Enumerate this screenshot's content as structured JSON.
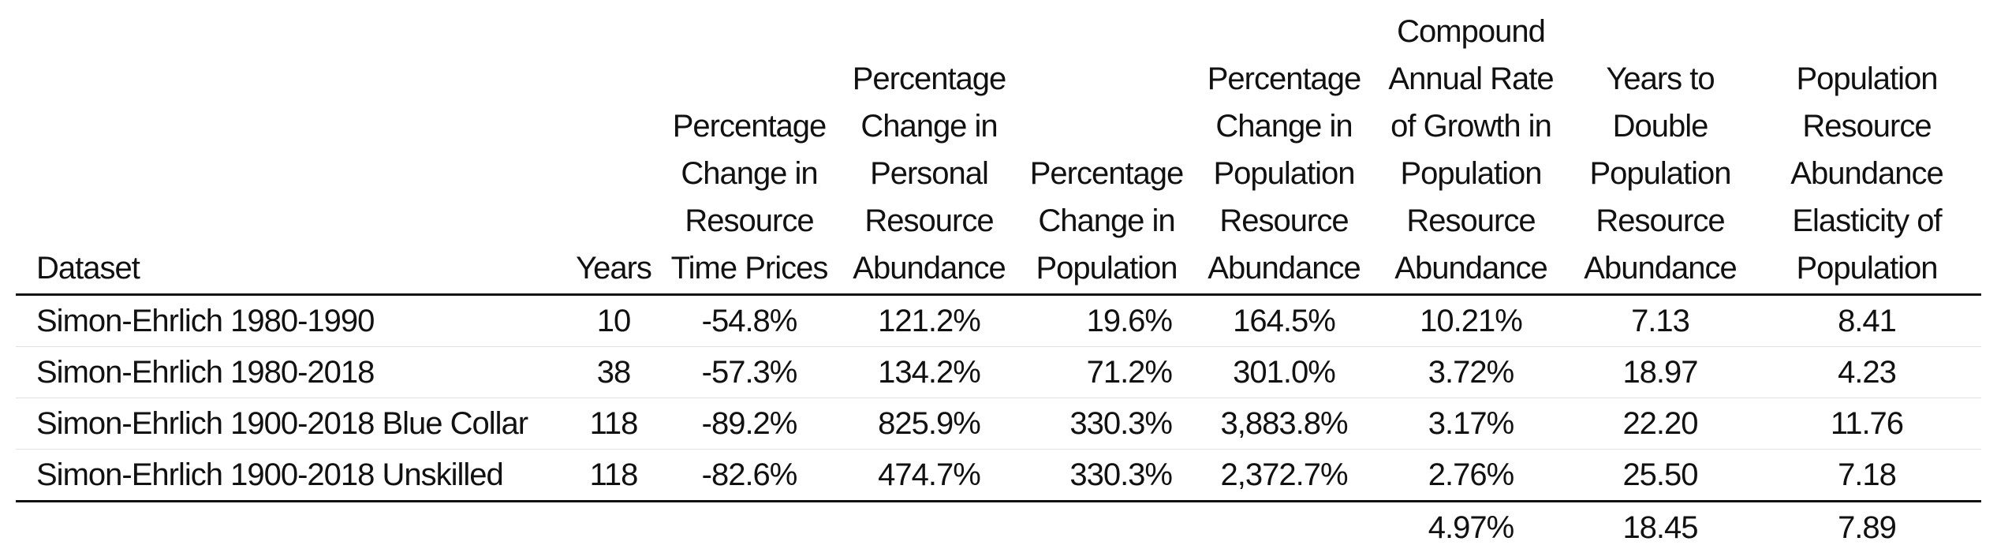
{
  "table": {
    "headers": {
      "dataset": "Dataset",
      "years": "Years",
      "pct_change_time_prices": [
        "Percentage",
        "Change in",
        "Resource",
        "Time Prices"
      ],
      "pct_change_personal_abundance": [
        "Percentage",
        "Change in",
        "Personal",
        "Resource",
        "Abundance"
      ],
      "pct_change_population": [
        "Percentage",
        "Change in",
        "Population"
      ],
      "pct_change_population_abundance": [
        "Percentage",
        "Change in",
        "Population",
        "Resource",
        "Abundance"
      ],
      "compound_annual_rate": [
        "Compound",
        "Annual Rate",
        "of Growth in",
        "Population",
        "Resource",
        "Abundance"
      ],
      "years_to_double": [
        "Years to",
        "Double",
        "Population",
        "Resource",
        "Abundance"
      ],
      "elasticity": [
        "Population",
        "Resource",
        "Abundance",
        "Elasticity of",
        "Population"
      ]
    },
    "rows": [
      {
        "dataset": "Simon-Ehrlich 1980-1990",
        "years": "10",
        "pct_change_time_prices": "-54.8%",
        "pct_change_personal_abundance": "121.2%",
        "pct_change_population": "19.6%",
        "pct_change_population_abundance": "164.5%",
        "compound_annual_rate": "10.21%",
        "years_to_double": "7.13",
        "elasticity": "8.41"
      },
      {
        "dataset": "Simon-Ehrlich 1980-2018",
        "years": "38",
        "pct_change_time_prices": "-57.3%",
        "pct_change_personal_abundance": "134.2%",
        "pct_change_population": "71.2%",
        "pct_change_population_abundance": "301.0%",
        "compound_annual_rate": "3.72%",
        "years_to_double": "18.97",
        "elasticity": "4.23"
      },
      {
        "dataset": "Simon-Ehrlich 1900-2018 Blue Collar",
        "years": "118",
        "pct_change_time_prices": "-89.2%",
        "pct_change_personal_abundance": "825.9%",
        "pct_change_population": "330.3%",
        "pct_change_population_abundance": "3,883.8%",
        "compound_annual_rate": "3.17%",
        "years_to_double": "22.20",
        "elasticity": "11.76"
      },
      {
        "dataset": "Simon-Ehrlich 1900-2018 Unskilled",
        "years": "118",
        "pct_change_time_prices": "-82.6%",
        "pct_change_personal_abundance": "474.7%",
        "pct_change_population": "330.3%",
        "pct_change_population_abundance": "2,372.7%",
        "compound_annual_rate": "2.76%",
        "years_to_double": "25.50",
        "elasticity": "7.18"
      }
    ],
    "footer": {
      "compound_annual_rate": "4.97%",
      "years_to_double": "18.45",
      "elasticity": "7.89"
    }
  }
}
